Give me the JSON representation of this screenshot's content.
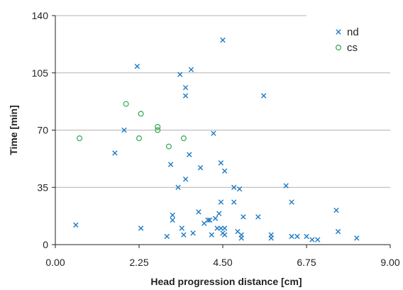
{
  "chart_data": {
    "type": "scatter",
    "title": "",
    "xlabel": "Head progression distance [cm]",
    "ylabel": "Time [min]",
    "xlim": [
      0,
      9
    ],
    "ylim": [
      0,
      140
    ],
    "x_ticks": [
      0,
      2.25,
      4.5,
      6.75,
      9
    ],
    "x_tick_labels": [
      "0.00",
      "2.25",
      "4.50",
      "6.75",
      "9.00"
    ],
    "y_ticks": [
      0,
      35,
      70,
      105,
      140
    ],
    "y_tick_labels": [
      "0",
      "35",
      "70",
      "105",
      "140"
    ],
    "grid": "horizontal",
    "legend_position": "top-right",
    "colors": {
      "nd": "#1f7bc4",
      "cs": "#2fa84f",
      "grid": "#b3b3b3",
      "axis": "#231f20"
    },
    "series": [
      {
        "name": "nd",
        "marker": "x",
        "points": [
          [
            0.55,
            12
          ],
          [
            1.6,
            56
          ],
          [
            1.85,
            70
          ],
          [
            2.2,
            109
          ],
          [
            2.3,
            10
          ],
          [
            3.0,
            5
          ],
          [
            3.1,
            49
          ],
          [
            3.15,
            18
          ],
          [
            3.15,
            15
          ],
          [
            3.3,
            35
          ],
          [
            3.35,
            104
          ],
          [
            3.4,
            10
          ],
          [
            3.45,
            6
          ],
          [
            3.5,
            40
          ],
          [
            3.5,
            91
          ],
          [
            3.5,
            96
          ],
          [
            3.6,
            55
          ],
          [
            3.65,
            107
          ],
          [
            3.7,
            7
          ],
          [
            3.85,
            20
          ],
          [
            3.9,
            47
          ],
          [
            4.0,
            13
          ],
          [
            4.1,
            15
          ],
          [
            4.15,
            15
          ],
          [
            4.2,
            6
          ],
          [
            4.25,
            68
          ],
          [
            4.3,
            16
          ],
          [
            4.35,
            10
          ],
          [
            4.4,
            19
          ],
          [
            4.45,
            10
          ],
          [
            4.45,
            50
          ],
          [
            4.45,
            26
          ],
          [
            4.5,
            7
          ],
          [
            4.5,
            125
          ],
          [
            4.55,
            45
          ],
          [
            4.55,
            10
          ],
          [
            4.55,
            6
          ],
          [
            4.8,
            35
          ],
          [
            4.8,
            26
          ],
          [
            4.9,
            8
          ],
          [
            4.95,
            34
          ],
          [
            5.0,
            4
          ],
          [
            5.0,
            6
          ],
          [
            5.05,
            17
          ],
          [
            5.45,
            17
          ],
          [
            5.6,
            91
          ],
          [
            5.8,
            4
          ],
          [
            5.8,
            6
          ],
          [
            6.2,
            36
          ],
          [
            6.35,
            26
          ],
          [
            6.35,
            5
          ],
          [
            6.5,
            5
          ],
          [
            6.75,
            5
          ],
          [
            6.9,
            3
          ],
          [
            7.05,
            3
          ],
          [
            7.55,
            21
          ],
          [
            7.6,
            8
          ],
          [
            8.1,
            4
          ]
        ]
      },
      {
        "name": "cs",
        "marker": "circle",
        "points": [
          [
            0.65,
            65
          ],
          [
            1.9,
            86
          ],
          [
            2.25,
            65
          ],
          [
            2.3,
            80
          ],
          [
            2.75,
            70
          ],
          [
            2.75,
            72
          ],
          [
            3.05,
            60
          ],
          [
            3.45,
            65
          ]
        ]
      }
    ]
  }
}
